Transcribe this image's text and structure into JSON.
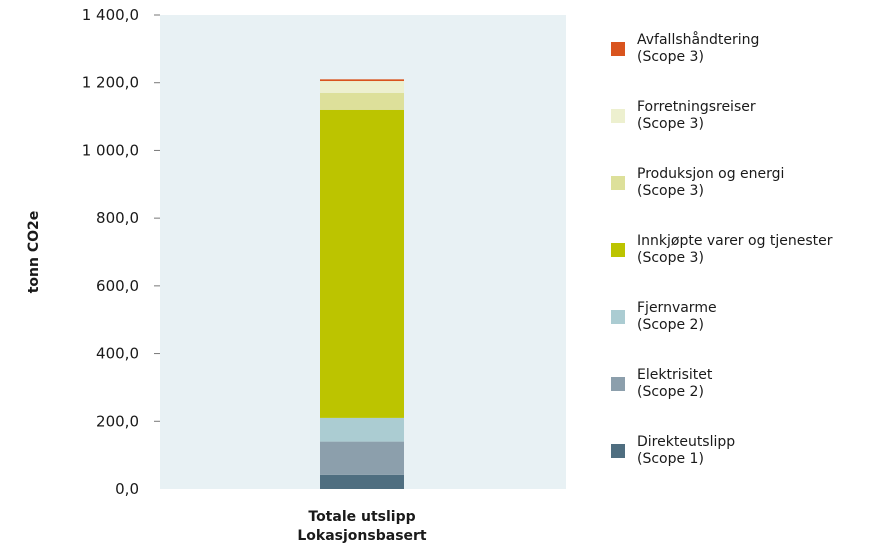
{
  "chart_data": {
    "type": "bar",
    "stacked": true,
    "categories": [
      "Totale utslipp\nLokasjonsbasert"
    ],
    "category_lines": [
      "Totale utslipp",
      "Lokasjonsbasert"
    ],
    "ylabel": "tonn CO2e",
    "ylim": [
      0,
      1400
    ],
    "yticks": [
      "0,0",
      "200,0",
      "400,0",
      "600,0",
      "800,0",
      "1 000,0",
      "1 200,0",
      "1 400,0"
    ],
    "ytick_values": [
      0,
      200,
      400,
      600,
      800,
      1000,
      1200,
      1400
    ],
    "grid": false,
    "legend_position": "right",
    "plot_background": "#E8F1F4",
    "series": [
      {
        "name": "Direkteutslipp (Scope 1)",
        "label_lines": [
          "Direkteutslipp",
          "(Scope 1)"
        ],
        "values": [
          42
        ],
        "color": "#4F6E80"
      },
      {
        "name": "Elektrisitet (Scope 2)",
        "label_lines": [
          "Elektrisitet",
          "(Scope 2)"
        ],
        "values": [
          98
        ],
        "color": "#8C9FAC"
      },
      {
        "name": "Fjernvarme (Scope 2)",
        "label_lines": [
          "Fjernvarme",
          "(Scope 2)"
        ],
        "values": [
          70
        ],
        "color": "#ABCCD2"
      },
      {
        "name": "Innkjøpte varer og tjenester (Scope 3)",
        "label_lines": [
          "Innkjøpte varer og tjenester",
          "(Scope 3)"
        ],
        "values": [
          910
        ],
        "color": "#BCC400"
      },
      {
        "name": "Produksjon og energi (Scope 3)",
        "label_lines": [
          "Produksjon og energi",
          "(Scope 3)"
        ],
        "values": [
          50
        ],
        "color": "#DDE09A"
      },
      {
        "name": "Forretningsreiser (Scope 3)",
        "label_lines": [
          "Forretningsreiser",
          "(Scope 3)"
        ],
        "values": [
          35
        ],
        "color": "#EDF0CF"
      },
      {
        "name": "Avfallshåndtering (Scope 3)",
        "label_lines": [
          "Avfallshåndtering",
          "(Scope 3)"
        ],
        "values": [
          5
        ],
        "color": "#D9541E"
      }
    ]
  }
}
